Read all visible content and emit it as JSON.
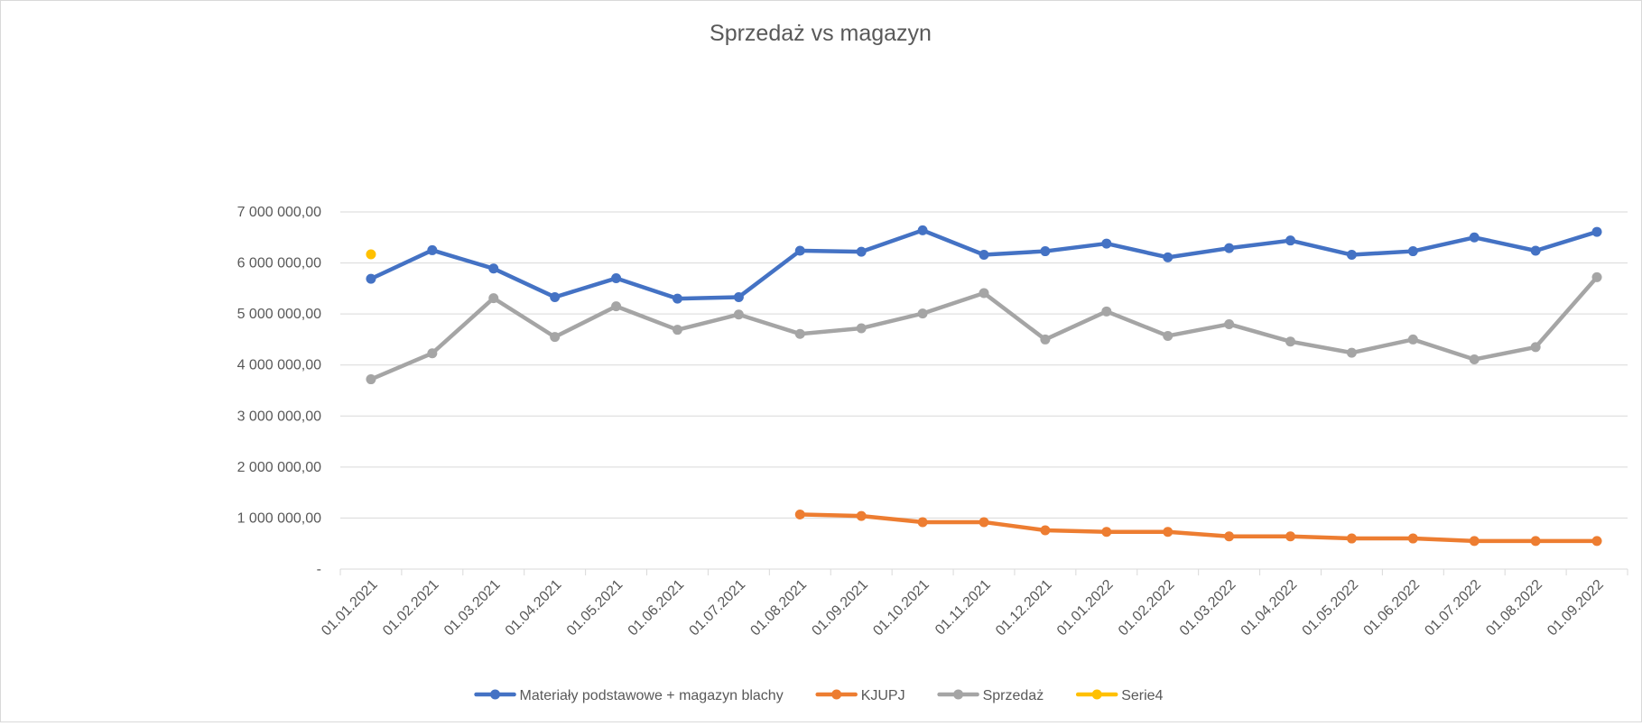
{
  "chart_data": {
    "type": "line",
    "title": "Sprzedaż vs magazyn",
    "xlabel": "",
    "ylabel": "",
    "ylim": [
      0,
      7000000
    ],
    "y_ticks": [
      {
        "value": 0,
        "label": "-"
      },
      {
        "value": 1000000,
        "label": "1 000 000,00"
      },
      {
        "value": 2000000,
        "label": "2 000 000,00"
      },
      {
        "value": 3000000,
        "label": "3 000 000,00"
      },
      {
        "value": 4000000,
        "label": "4 000 000,00"
      },
      {
        "value": 5000000,
        "label": "5 000 000,00"
      },
      {
        "value": 6000000,
        "label": "6 000 000,00"
      },
      {
        "value": 7000000,
        "label": "7 000 000,00"
      }
    ],
    "categories": [
      "01.01.2021",
      "01.02.2021",
      "01.03.2021",
      "01.04.2021",
      "01.05.2021",
      "01.06.2021",
      "01.07.2021",
      "01.08.2021",
      "01.09.2021",
      "01.10.2021",
      "01.11.2021",
      "01.12.2021",
      "01.01.2022",
      "01.02.2022",
      "01.03.2022",
      "01.04.2022",
      "01.05.2022",
      "01.06.2022",
      "01.07.2022",
      "01.08.2022",
      "01.09.2022"
    ],
    "grid": true,
    "legend_position": "bottom",
    "series": [
      {
        "name": "Materiały podstawowe + magazyn blachy",
        "color": "#4472C4",
        "values": [
          5690000,
          6250000,
          5890000,
          5330000,
          5700000,
          5300000,
          5330000,
          6240000,
          6220000,
          6640000,
          6160000,
          6230000,
          6380000,
          6110000,
          6290000,
          6440000,
          6160000,
          6230000,
          6500000,
          6240000,
          6610000
        ]
      },
      {
        "name": "KJUPJ",
        "color": "#ED7D31",
        "values": [
          null,
          null,
          null,
          null,
          null,
          null,
          null,
          1070000,
          1040000,
          920000,
          920000,
          760000,
          730000,
          730000,
          640000,
          640000,
          600000,
          600000,
          550000,
          550000,
          550000
        ]
      },
      {
        "name": "Sprzedaż",
        "color": "#A5A5A5",
        "values": [
          3720000,
          4230000,
          5310000,
          4550000,
          5150000,
          4690000,
          4990000,
          4610000,
          4720000,
          5010000,
          5410000,
          4500000,
          5050000,
          4570000,
          4800000,
          4460000,
          4240000,
          4500000,
          4110000,
          4350000,
          5720000
        ]
      },
      {
        "name": "Serie4",
        "color": "#FFC000",
        "values": [
          6170000,
          null,
          null,
          null,
          null,
          null,
          null,
          null,
          null,
          null,
          null,
          null,
          null,
          null,
          null,
          null,
          null,
          null,
          null,
          null,
          null
        ]
      }
    ]
  }
}
